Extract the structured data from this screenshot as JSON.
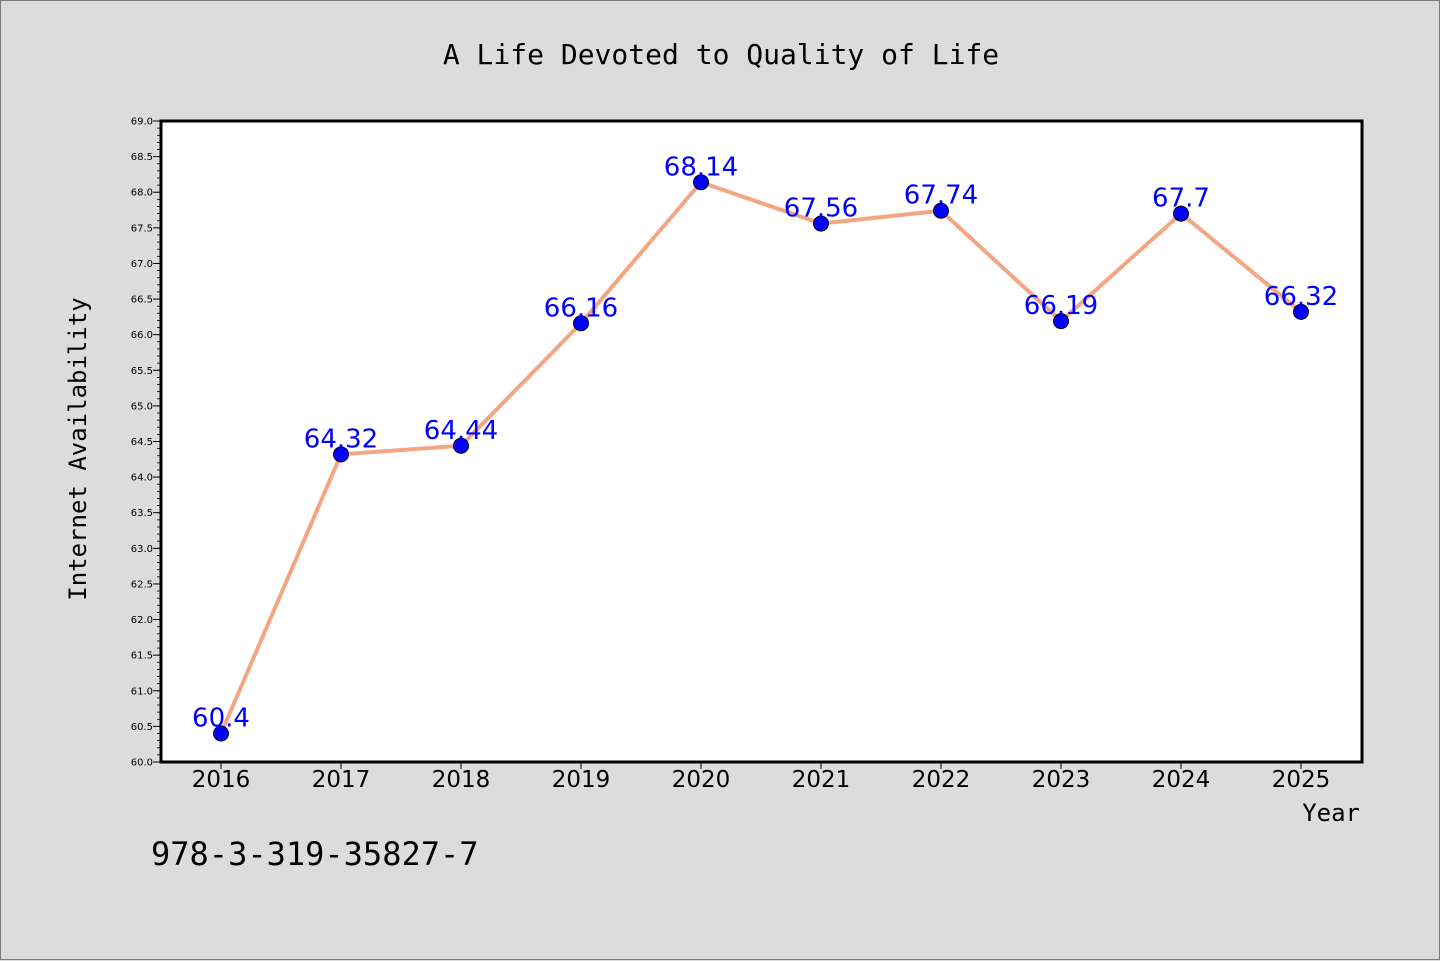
{
  "chart_data": {
    "type": "line",
    "title": "A Life Devoted to Quality of Life",
    "xlabel": "Year",
    "ylabel": "Internet Availability",
    "categories": [
      "2016",
      "2017",
      "2018",
      "2019",
      "2020",
      "2021",
      "2022",
      "2023",
      "2024",
      "2025"
    ],
    "series": [
      {
        "values": [
          60.4,
          64.32,
          64.44,
          66.16,
          68.14,
          67.56,
          67.74,
          66.19,
          67.7,
          66.32
        ],
        "labels": [
          "60.4",
          "64.32",
          "64.44",
          "66.16",
          "68.14",
          "67.56",
          "67.74",
          "66.19",
          "67.7",
          "66.32"
        ],
        "line_color": "#f4a582",
        "marker_color": "#0000ff"
      }
    ],
    "ylim": [
      60.0,
      69.0
    ],
    "yticks": [
      "60.0",
      "60.5",
      "61.0",
      "61.5",
      "62.0",
      "62.5",
      "63.0",
      "63.5",
      "64.0",
      "64.5",
      "65.0",
      "65.5",
      "66.0",
      "66.5",
      "67.0",
      "67.5",
      "68.0",
      "68.5",
      "69.0"
    ],
    "grid": false,
    "legend": "none"
  },
  "footer": {
    "text": "978-3-319-35827-7"
  },
  "colors": {
    "background": "#dcdcdc",
    "plot_background": "#ffffff",
    "data_label": "#0000ff"
  }
}
